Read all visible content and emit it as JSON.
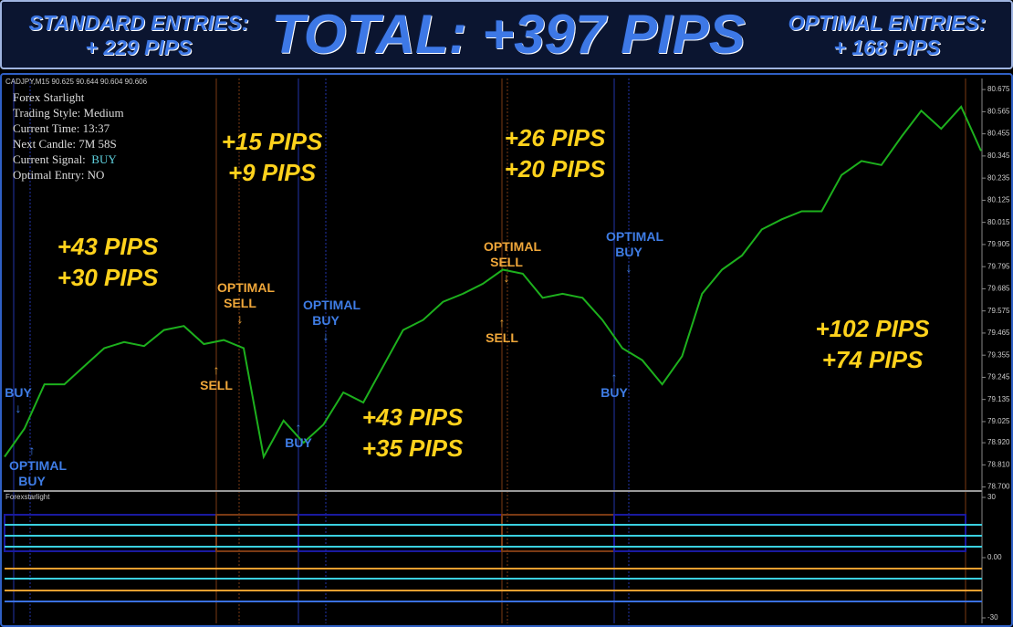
{
  "header": {
    "standard_title": "STANDARD ENTRIES:",
    "standard_value": "+ 229 PIPS",
    "total": "TOTAL: +397 PIPS",
    "optimal_title": "OPTIMAL ENTRIES:",
    "optimal_value": "+ 168 PIPS"
  },
  "symbol": "CADJPY,M15  90.625 90.644 90.604 90.606",
  "info_panel": {
    "lines": [
      "Forex Starlight",
      "Trading Style: Medium",
      "Current Time: 13:37",
      "Next Candle: 7M 58S"
    ],
    "signal_label": "Current Signal:",
    "signal_value": "BUY",
    "optimal_line": "Optimal Entry: NO"
  },
  "pips": [
    [
      "+43 PIPS",
      "+30 PIPS"
    ],
    [
      "+15 PIPS",
      "+9 PIPS"
    ],
    [
      "+43 PIPS",
      "+35 PIPS"
    ],
    [
      "+26 PIPS",
      "+20 PIPS"
    ],
    [
      "+102 PIPS",
      "+74 PIPS"
    ]
  ],
  "signals": [
    "BUY",
    "OPTIMAL BUY",
    "OPTIMAL SELL",
    "SELL",
    "OPTIMAL BUY",
    "BUY",
    "OPTIMAL SELL",
    "SELL",
    "OPTIMAL BUY",
    "BUY"
  ],
  "chart_data": {
    "type": "line",
    "color": "#1db01d",
    "categories": [
      null,
      null,
      null,
      null,
      null,
      null,
      null,
      null,
      null,
      null,
      null,
      null,
      null,
      null,
      null,
      null,
      null,
      null,
      null,
      null,
      null,
      null,
      null,
      null,
      null,
      null,
      null,
      null,
      null,
      null,
      null,
      null,
      null,
      null,
      null,
      null,
      null,
      null,
      null,
      null,
      null,
      null,
      null,
      null,
      null,
      null,
      null,
      null,
      null,
      null
    ],
    "values": [
      78.85,
      78.99,
      79.21,
      79.21,
      79.3,
      79.39,
      79.42,
      79.4,
      79.48,
      79.5,
      79.41,
      79.43,
      79.39,
      78.85,
      79.03,
      78.92,
      79.01,
      79.17,
      79.12,
      79.3,
      79.48,
      79.53,
      79.62,
      79.66,
      79.71,
      79.78,
      79.76,
      79.64,
      79.66,
      79.64,
      79.53,
      79.39,
      79.33,
      79.21,
      79.35,
      79.66,
      79.78,
      79.85,
      79.98,
      80.03,
      80.07,
      80.07,
      80.25,
      80.32,
      80.3,
      80.44,
      80.57,
      80.48,
      80.59,
      80.37
    ],
    "ylim": [
      78.68,
      80.73
    ],
    "yticks": [
      {
        "value": 78.7,
        "label": "78.700"
      },
      {
        "value": 78.81,
        "label": "78.810"
      },
      {
        "value": 78.92,
        "label": "78.920"
      },
      79.025,
      79.135,
      79.245,
      79.355,
      79.465,
      79.575,
      79.685,
      79.795,
      79.905,
      80.015,
      80.125,
      80.235,
      80.345,
      80.455,
      80.565,
      80.675
    ]
  },
  "indicator": {
    "name": "Forexstarlight",
    "ylim": [
      -30,
      30
    ],
    "yticks": [
      30,
      {
        "value": 0,
        "label": "0.00"
      },
      -30
    ]
  }
}
